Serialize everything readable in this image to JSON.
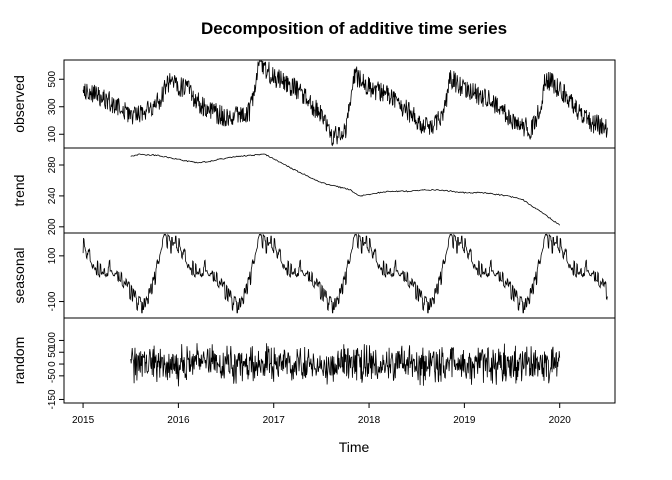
{
  "chart_data": {
    "type": "line",
    "title": "Decomposition of additive time series",
    "xlabel": "Time",
    "x_ticks": [
      2015,
      2016,
      2017,
      2018,
      2019,
      2020
    ],
    "xlim": [
      2014.8,
      2020.58
    ],
    "panels": [
      {
        "name": "observed",
        "ylabel": "observed",
        "y_ticks": [
          100,
          300,
          500
        ],
        "ylim": [
          0,
          640
        ],
        "x": [
          2015.0,
          2015.25,
          2015.5,
          2015.75,
          2015.9,
          2016.1,
          2016.25,
          2016.5,
          2016.75,
          2016.85,
          2017.0,
          2017.25,
          2017.5,
          2017.6,
          2017.75,
          2017.85,
          2018.0,
          2018.25,
          2018.5,
          2018.65,
          2018.8,
          2018.85,
          2019.0,
          2019.25,
          2019.5,
          2019.7,
          2019.8,
          2019.85,
          2020.0,
          2020.25,
          2020.5
        ],
        "values": [
          430,
          350,
          240,
          290,
          480,
          420,
          300,
          220,
          260,
          620,
          520,
          420,
          240,
          80,
          110,
          530,
          440,
          360,
          210,
          120,
          300,
          510,
          430,
          350,
          200,
          130,
          300,
          510,
          430,
          210,
          140
        ],
        "amplitude": 75
      },
      {
        "name": "trend",
        "ylabel": "trend",
        "y_ticks": [
          200,
          240,
          280
        ],
        "ylim": [
          192,
          302
        ],
        "x": [
          2015.5,
          2015.6,
          2015.8,
          2016.0,
          2016.2,
          2016.3,
          2016.5,
          2016.7,
          2016.9,
          2017.0,
          2017.2,
          2017.5,
          2017.8,
          2017.9,
          2018.0,
          2018.2,
          2018.4,
          2018.6,
          2018.8,
          2019.0,
          2019.2,
          2019.4,
          2019.6,
          2019.8,
          2020.0
        ],
        "values": [
          291,
          294,
          292,
          287,
          283,
          284,
          289,
          292,
          294,
          288,
          275,
          257,
          248,
          240,
          242,
          246,
          246,
          248,
          247,
          244,
          244,
          241,
          236,
          220,
          202
        ],
        "amplitude": 0.8
      },
      {
        "name": "seasonal",
        "ylabel": "seasonal",
        "y_ticks": [
          -100,
          100
        ],
        "ylim": [
          -172,
          200
        ],
        "x": [
          2015.0,
          2015.1,
          2015.2,
          2015.3,
          2015.4,
          2015.5,
          2015.6,
          2015.65,
          2015.75,
          2015.85,
          2015.9,
          2016.0
        ],
        "values": [
          150,
          60,
          20,
          60,
          10,
          -60,
          -120,
          -120,
          0,
          180,
          150,
          150
        ],
        "period": 1,
        "repeat_range": [
          2015.0,
          2020.5
        ],
        "amplitude": 38
      },
      {
        "name": "random",
        "ylabel": "random",
        "y_ticks": [
          -150,
          -50,
          0,
          50,
          100
        ],
        "ylim": [
          -165,
          195
        ],
        "x": [
          2015.5,
          2020.0
        ],
        "values": [
          0,
          0
        ],
        "amplitude": 95
      }
    ]
  }
}
